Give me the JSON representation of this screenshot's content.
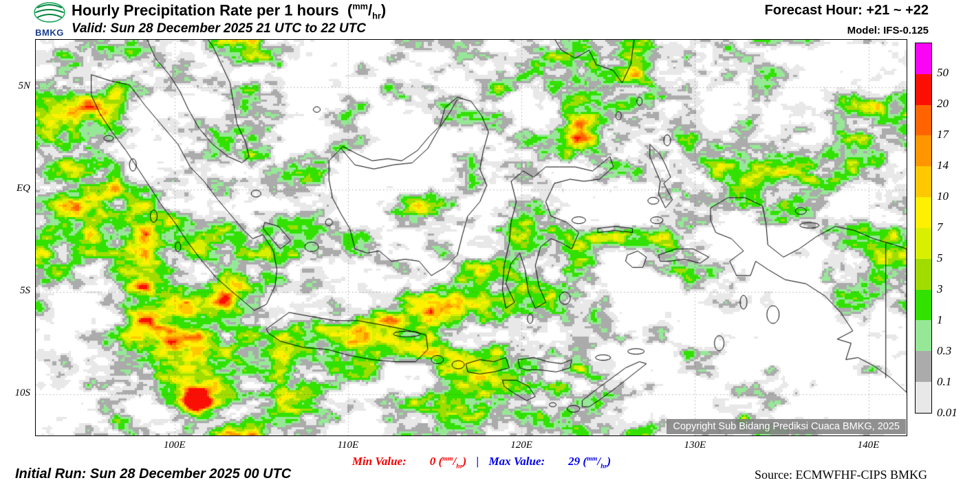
{
  "header": {
    "logo_text": "BMKG",
    "title_main": "Hourly Precipitation Rate per 1 hours",
    "valid": "Valid: Sun 28 December 2025 21 UTC to 22 UTC",
    "forecast": "Forecast Hour: +21 ~ +22",
    "model": "Model: IFS-0.125"
  },
  "units": {
    "open": "(",
    "mm": "mm",
    "slash": "/",
    "hr": "hr",
    "close": ")"
  },
  "map": {
    "extent": {
      "lon_min": 92,
      "lon_max": 142.2,
      "lat_min": -12,
      "lat_max": 7.3
    },
    "lat_ticks": [
      {
        "label": "5N",
        "lat": 5
      },
      {
        "label": "EQ",
        "lat": 0
      },
      {
        "label": "5S",
        "lat": -5
      },
      {
        "label": "10S",
        "lat": -10
      }
    ],
    "lon_ticks": [
      {
        "label": "100E",
        "lon": 100
      },
      {
        "label": "110E",
        "lon": 110
      },
      {
        "label": "120E",
        "lon": 120
      },
      {
        "label": "130E",
        "lon": 130
      },
      {
        "label": "140E",
        "lon": 140
      }
    ],
    "copyright": "Copyright Sub Bidang Prediksi Cuaca BMKG, 2025"
  },
  "legend": {
    "segments": [
      {
        "min_label": "0.01",
        "color": "#e8e8e8"
      },
      {
        "min_label": "0.1",
        "color": "#ababab"
      },
      {
        "min_label": "0.3",
        "color": "#96e896"
      },
      {
        "min_label": "1",
        "color": "#32e100"
      },
      {
        "min_label": "3",
        "color": "#a0dc00"
      },
      {
        "min_label": "5",
        "color": "#d8f000"
      },
      {
        "min_label": "7",
        "color": "#fff000"
      },
      {
        "min_label": "10",
        "color": "#ffc800"
      },
      {
        "min_label": "14",
        "color": "#ff9600"
      },
      {
        "min_label": "17",
        "color": "#ff6400"
      },
      {
        "min_label": "20",
        "color": "#fb0f05"
      },
      {
        "min_label": "50",
        "color": "#fa04f5"
      }
    ]
  },
  "footer": {
    "min_label": "Min Value:",
    "min_value": "0",
    "separator": "|",
    "max_label": "Max Value:",
    "max_value": "29",
    "initial_run": "Initial Run: Sun 28 December 2025 00 UTC",
    "source": "Source: ECMWFHF-CIPS BMKG"
  }
}
